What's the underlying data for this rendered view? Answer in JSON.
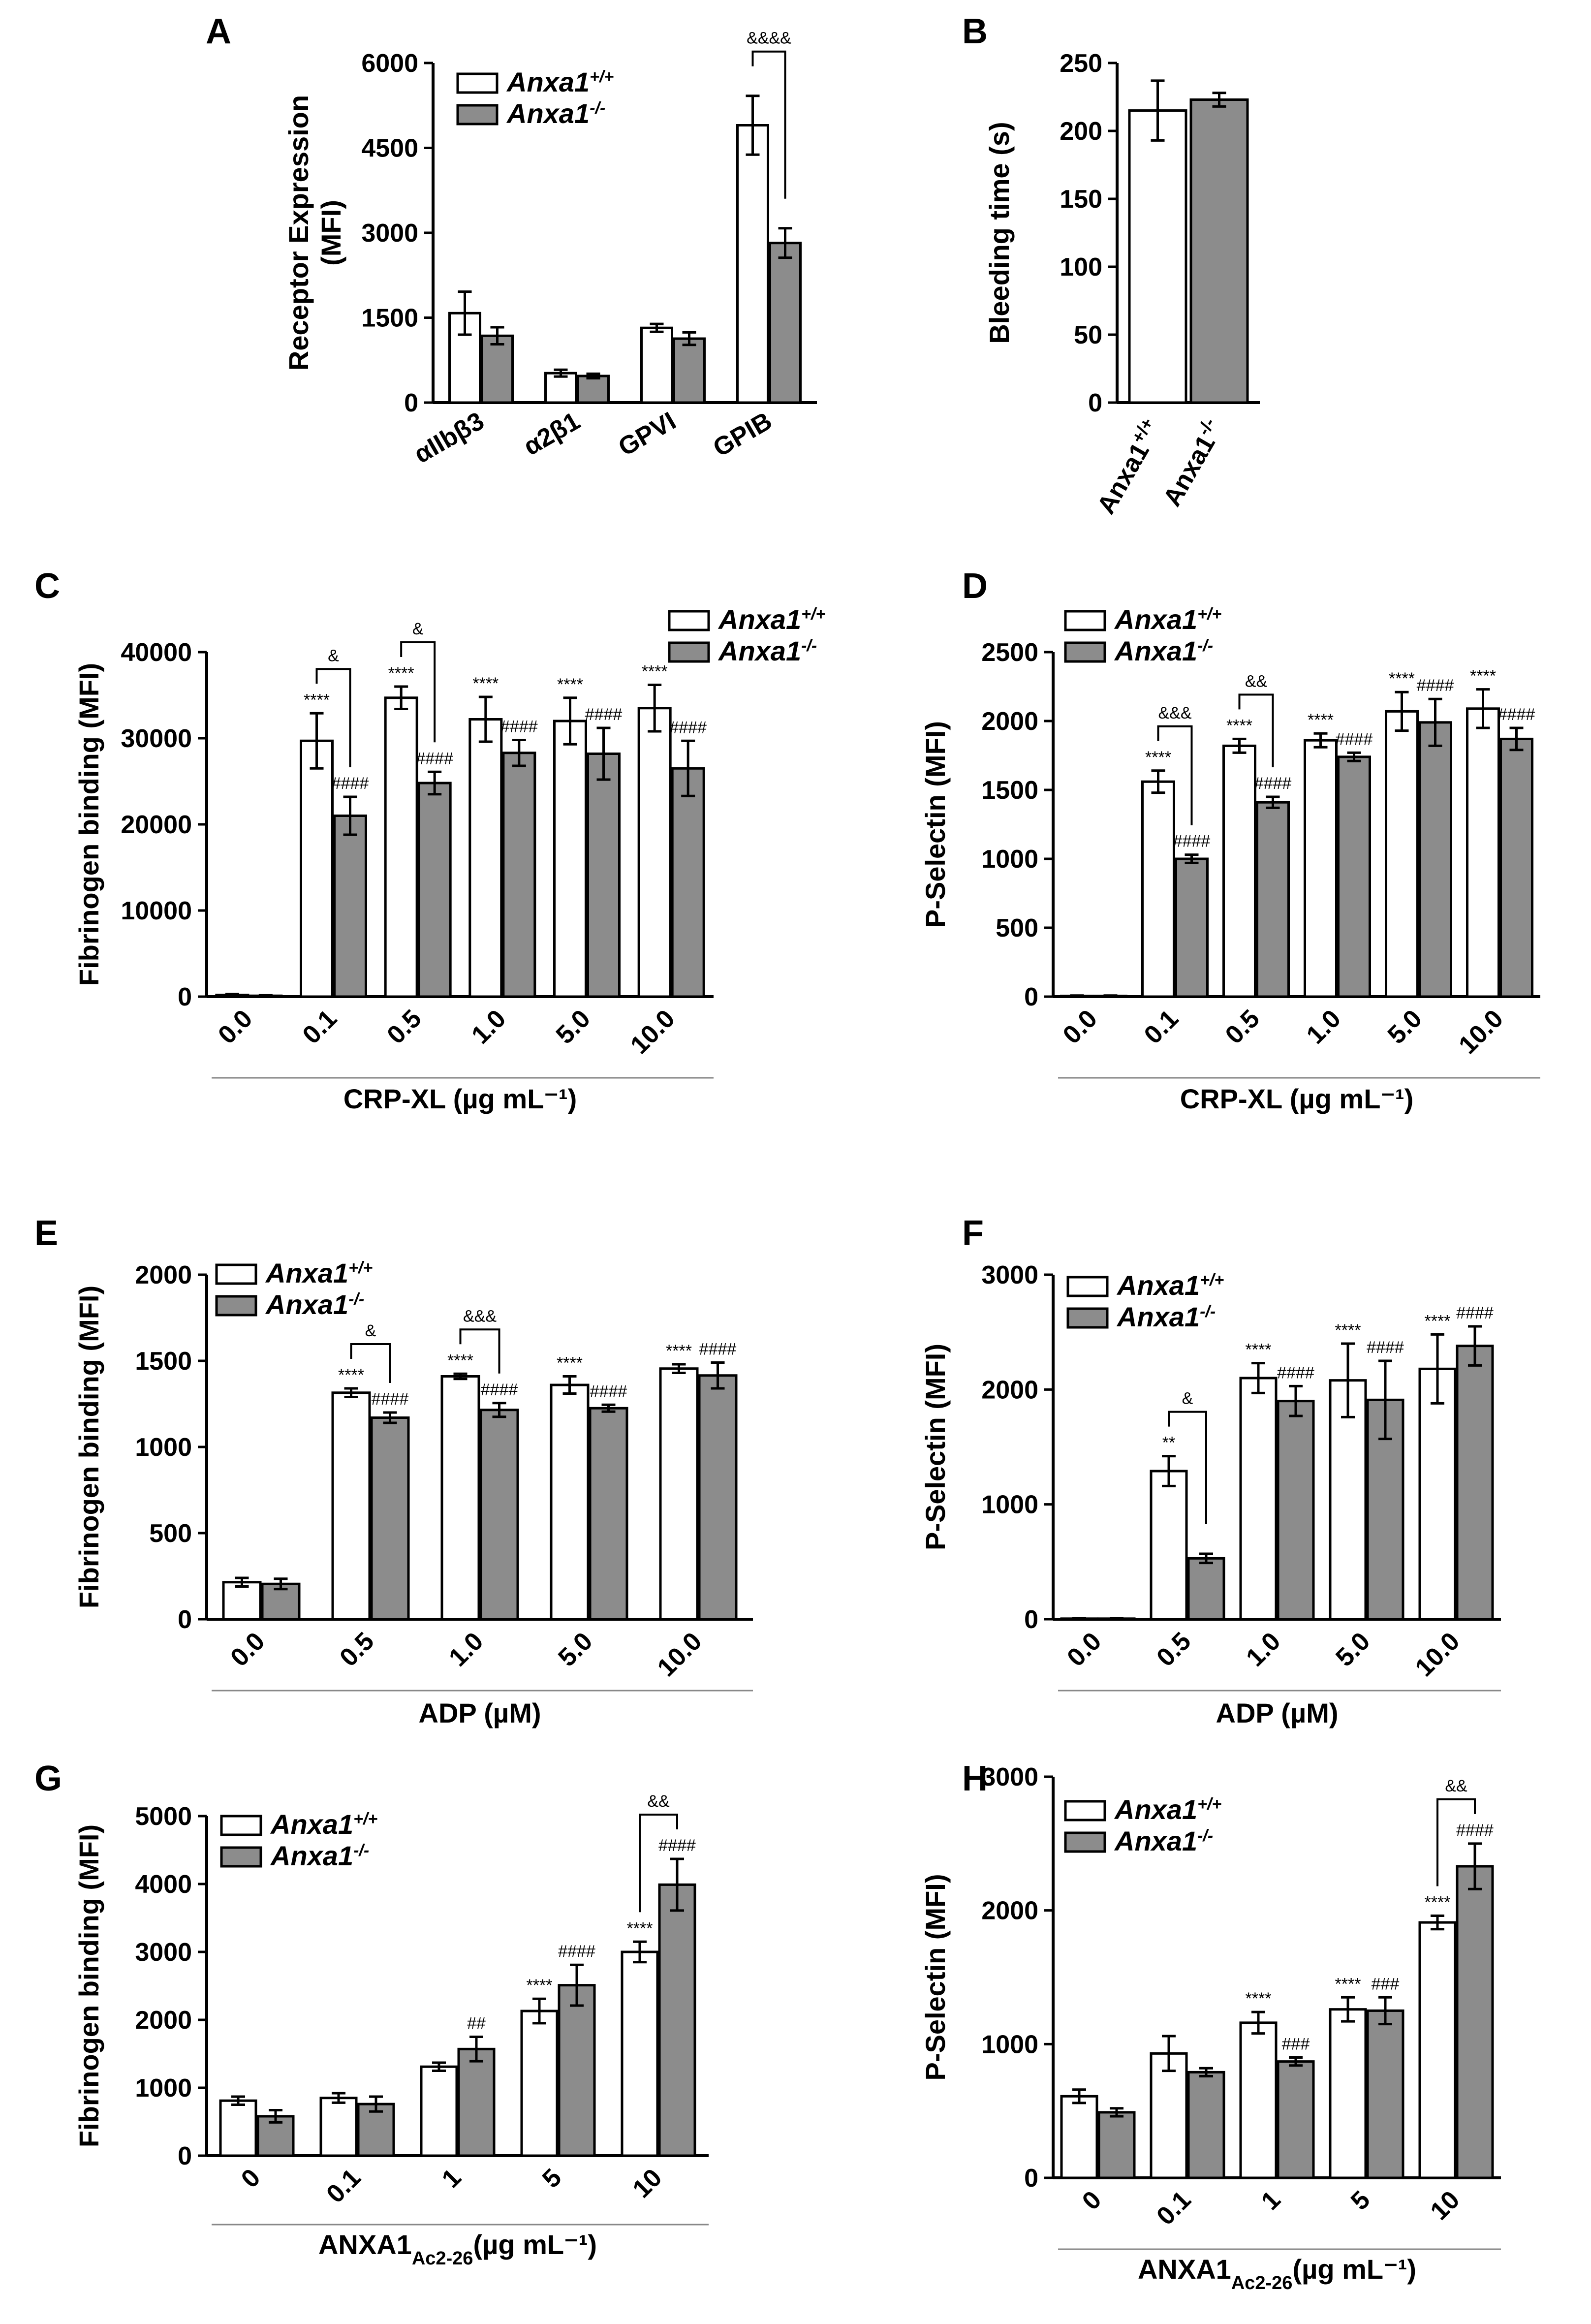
{
  "legend": {
    "wt": "Anxa1",
    "wt_sup": "+/+",
    "ko": "Anxa1",
    "ko_sup": "-/-"
  },
  "colors": {
    "wt": "#ffffff",
    "ko": "#8c8c8c",
    "axis": "#000000"
  },
  "chart_data": [
    {
      "id": "A",
      "panel": "A",
      "type": "bar",
      "ylabel": "Receptor Expression\n(MFI)",
      "xlabel": "",
      "ylim": [
        0,
        6000
      ],
      "yticks": [
        0,
        1500,
        3000,
        4500,
        6000
      ],
      "categories": [
        "αIIbβ3",
        "α2β1",
        "GPVI",
        "GPIB"
      ],
      "categories_bold": [
        false,
        false,
        true,
        true
      ],
      "x_rotate": -30,
      "series": [
        {
          "name": "Anxa1+/+",
          "values": [
            1580,
            520,
            1320,
            4900
          ],
          "errors": [
            380,
            60,
            70,
            520
          ],
          "sig": [
            "",
            "",
            "",
            ""
          ]
        },
        {
          "name": "Anxa1-/-",
          "values": [
            1180,
            470,
            1130,
            2820
          ],
          "errors": [
            150,
            40,
            110,
            260
          ],
          "sig": [
            "",
            "",
            "",
            ""
          ]
        }
      ],
      "brackets": [
        {
          "cat": 3,
          "text": "&&&&"
        }
      ],
      "legend_pos": "top-left"
    },
    {
      "id": "B",
      "panel": "B",
      "type": "bar",
      "ylabel": "Bleeding time (s)",
      "xlabel": "",
      "ylim": [
        0,
        250
      ],
      "yticks": [
        0,
        50,
        100,
        150,
        200,
        250
      ],
      "categories": [
        "Anxa1+/+",
        "Anxa1-/-"
      ],
      "single": true,
      "values": [
        215,
        223
      ],
      "errors": [
        22,
        5
      ]
    },
    {
      "id": "C",
      "panel": "C",
      "type": "bar",
      "ylabel": "Fibrinogen binding (MFI)",
      "xlabel": "CRP-XL (µg mL⁻¹)",
      "ylim": [
        0,
        40000
      ],
      "yticks": [
        0,
        10000,
        20000,
        30000,
        40000
      ],
      "categories": [
        "0.0",
        "0.1",
        "0.5",
        "1.0",
        "5.0",
        "10.0"
      ],
      "x_rotate": -45,
      "series": [
        {
          "name": "Anxa1+/+",
          "values": [
            200,
            29700,
            34700,
            32200,
            32000,
            33500
          ],
          "errors": [
            100,
            3200,
            1300,
            2600,
            2700,
            2700
          ],
          "sig": [
            "",
            "****",
            "****",
            "****",
            "****",
            "****"
          ]
        },
        {
          "name": "Anxa1-/-",
          "values": [
            100,
            21000,
            24800,
            28300,
            28200,
            26500
          ],
          "errors": [
            50,
            2200,
            1300,
            1500,
            3000,
            3200
          ],
          "sig": [
            "",
            "####",
            "####",
            "####",
            "####",
            "####"
          ]
        }
      ],
      "brackets": [
        {
          "cat": 1,
          "text": "&"
        },
        {
          "cat": 2,
          "text": "&"
        }
      ],
      "legend_pos": "top-right"
    },
    {
      "id": "D",
      "panel": "D",
      "type": "bar",
      "ylabel": "P-Selectin (MFI)",
      "xlabel": "CRP-XL (µg mL⁻¹)",
      "ylim": [
        0,
        2500
      ],
      "yticks": [
        0,
        500,
        1000,
        1500,
        2000,
        2500
      ],
      "categories": [
        "0.0",
        "0.1",
        "0.5",
        "1.0",
        "5.0",
        "10.0"
      ],
      "x_rotate": -45,
      "series": [
        {
          "name": "Anxa1+/+",
          "values": [
            5,
            1560,
            1820,
            1860,
            2070,
            2090
          ],
          "errors": [
            3,
            80,
            50,
            50,
            140,
            140
          ],
          "sig": [
            "",
            "****",
            "****",
            "****",
            "****",
            "****"
          ]
        },
        {
          "name": "Anxa1-/-",
          "values": [
            5,
            1000,
            1410,
            1740,
            1990,
            1870
          ],
          "errors": [
            3,
            30,
            40,
            30,
            170,
            80
          ],
          "sig": [
            "",
            "####",
            "####",
            "####",
            "####",
            "####"
          ]
        }
      ],
      "brackets": [
        {
          "cat": 1,
          "text": "&&&"
        },
        {
          "cat": 2,
          "text": "&&"
        }
      ],
      "legend_pos": "top-left"
    },
    {
      "id": "E",
      "panel": "E",
      "type": "bar",
      "ylabel": "Fibrinogen binding (MFI)",
      "xlabel": "ADP (µM)",
      "ylim": [
        0,
        2000
      ],
      "yticks": [
        0,
        500,
        1000,
        1500,
        2000
      ],
      "categories": [
        "0.0",
        "0.5",
        "1.0",
        "5.0",
        "10.0"
      ],
      "x_rotate": -45,
      "series": [
        {
          "name": "Anxa1+/+",
          "values": [
            215,
            1315,
            1410,
            1360,
            1455
          ],
          "errors": [
            25,
            25,
            15,
            50,
            25
          ],
          "sig": [
            "",
            "****",
            "****",
            "****",
            "****"
          ]
        },
        {
          "name": "Anxa1-/-",
          "values": [
            205,
            1170,
            1215,
            1225,
            1415
          ],
          "errors": [
            30,
            30,
            40,
            20,
            75
          ],
          "sig": [
            "",
            "####",
            "####",
            "####",
            "####"
          ]
        }
      ],
      "brackets": [
        {
          "cat": 1,
          "text": "&"
        },
        {
          "cat": 2,
          "text": "&&&"
        }
      ],
      "legend_pos": "top-left"
    },
    {
      "id": "F",
      "panel": "F",
      "type": "bar",
      "ylabel": "P-Selectin (MFI)",
      "xlabel": "ADP (µM)",
      "ylim": [
        0,
        3000
      ],
      "yticks": [
        0,
        1000,
        2000,
        3000
      ],
      "categories": [
        "0.0",
        "0.5",
        "1.0",
        "5.0",
        "10.0"
      ],
      "x_rotate": -45,
      "series": [
        {
          "name": "Anxa1+/+",
          "values": [
            5,
            1290,
            2100,
            2080,
            2180
          ],
          "errors": [
            3,
            130,
            130,
            320,
            300
          ],
          "sig": [
            "",
            "**",
            "****",
            "****",
            "****"
          ]
        },
        {
          "name": "Anxa1-/-",
          "values": [
            5,
            530,
            1900,
            1910,
            2380
          ],
          "errors": [
            3,
            40,
            130,
            340,
            170
          ],
          "sig": [
            "",
            "",
            "####",
            "####",
            "####"
          ]
        }
      ],
      "brackets": [
        {
          "cat": 1,
          "text": "&"
        }
      ],
      "legend_pos": "top-left"
    },
    {
      "id": "G",
      "panel": "G",
      "type": "bar",
      "ylabel": "Fibrinogen binding (MFI)",
      "xlabel": "ANXA1Ac2-26(µg mL⁻¹)",
      "ylim": [
        0,
        5000
      ],
      "yticks": [
        0,
        1000,
        2000,
        3000,
        4000,
        5000
      ],
      "categories": [
        "0",
        "0.1",
        "1",
        "5",
        "10"
      ],
      "x_rotate": -45,
      "series": [
        {
          "name": "Anxa1+/+",
          "values": [
            810,
            850,
            1310,
            2130,
            3000
          ],
          "errors": [
            60,
            70,
            60,
            180,
            150
          ],
          "sig": [
            "",
            "",
            "",
            "****",
            "****"
          ]
        },
        {
          "name": "Anxa1-/-",
          "values": [
            580,
            760,
            1570,
            2510,
            3990
          ],
          "errors": [
            90,
            110,
            180,
            300,
            380
          ],
          "sig": [
            "",
            "",
            "##",
            "####",
            "####"
          ]
        }
      ],
      "brackets": [
        {
          "cat": 4,
          "text": "&&"
        }
      ],
      "legend_pos": "top-left"
    },
    {
      "id": "H",
      "panel": "H",
      "type": "bar",
      "ylabel": "P-Selectin (MFI)",
      "xlabel": "ANXA1Ac2-26(µg mL⁻¹)",
      "ylim": [
        0,
        3000
      ],
      "yticks": [
        0,
        1000,
        2000,
        3000
      ],
      "categories": [
        "0",
        "0.1",
        "1",
        "5",
        "10"
      ],
      "x_rotate": -45,
      "series": [
        {
          "name": "Anxa1+/+",
          "values": [
            610,
            930,
            1160,
            1260,
            1910
          ],
          "errors": [
            50,
            130,
            80,
            90,
            50
          ],
          "sig": [
            "",
            "",
            "****",
            "****",
            "****"
          ]
        },
        {
          "name": "Anxa1-/-",
          "values": [
            490,
            790,
            870,
            1250,
            2330
          ],
          "errors": [
            30,
            30,
            30,
            100,
            170
          ],
          "sig": [
            "",
            "",
            "###",
            "###",
            "####"
          ]
        }
      ],
      "brackets": [
        {
          "cat": 4,
          "text": "&&"
        }
      ],
      "legend_pos": "top-left"
    }
  ]
}
